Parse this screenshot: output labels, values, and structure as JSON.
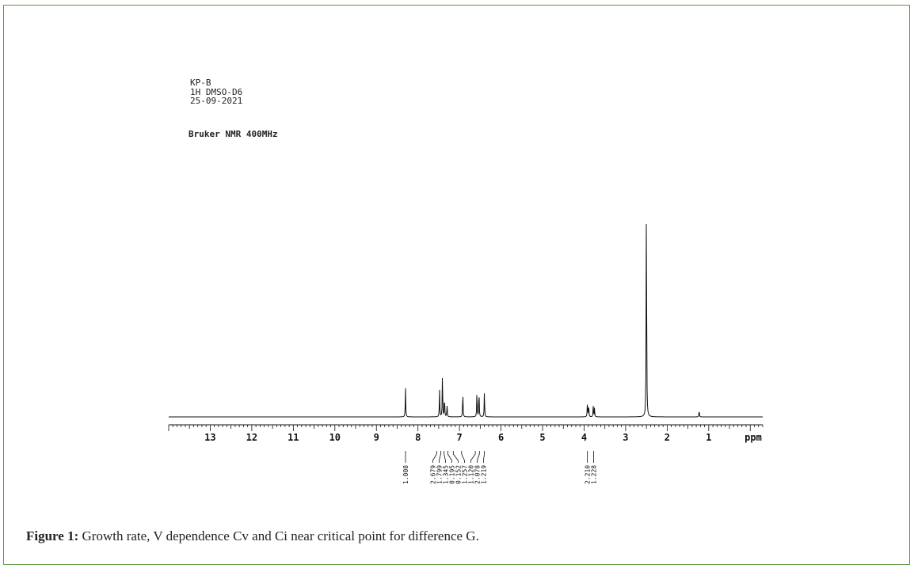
{
  "figure": {
    "caption_label": "Figure 1:",
    "caption_text": "Growth rate, V dependence Cv and Ci  near critical point for difference G.",
    "frame_color": "#5a9a3c"
  },
  "spectrum_header": {
    "sample": "KP-B",
    "experiment": "1H DMSO-D6",
    "date": "25-09-2021",
    "instrument": "Bruker NMR 400MHz"
  },
  "chart_data": {
    "type": "line",
    "xlabel": "ppm",
    "xlim": [
      14.0,
      -0.3
    ],
    "reversed_x": true,
    "x_ticks": [
      13,
      12,
      11,
      10,
      9,
      8,
      7,
      6,
      5,
      4,
      3,
      2,
      1
    ],
    "peaks": [
      {
        "shift": 8.3,
        "height": 0.125
      },
      {
        "shift": 7.48,
        "height": 0.115
      },
      {
        "shift": 7.41,
        "height": 0.19
      },
      {
        "shift": 7.36,
        "height": 0.09
      },
      {
        "shift": 7.3,
        "height": 0.05
      },
      {
        "shift": 6.92,
        "height": 0.11
      },
      {
        "shift": 6.58,
        "height": 0.115
      },
      {
        "shift": 6.53,
        "height": 0.12
      },
      {
        "shift": 6.4,
        "height": 0.11
      },
      {
        "shift": 3.92,
        "height": 0.065
      },
      {
        "shift": 3.89,
        "height": 0.055
      },
      {
        "shift": 3.78,
        "height": 0.045
      },
      {
        "shift": 3.75,
        "height": 0.04
      },
      {
        "shift": 2.5,
        "height": 1.0
      },
      {
        "shift": 1.23,
        "height": 0.03
      }
    ],
    "integrals": [
      {
        "shift": 8.3,
        "label": "1.008"
      },
      {
        "shift": 7.55,
        "label": "2.679"
      },
      {
        "shift": 7.45,
        "label": "1.799"
      },
      {
        "shift": 7.37,
        "label": "1.345"
      },
      {
        "shift": 7.28,
        "label": "0.195"
      },
      {
        "shift": 7.15,
        "label": "0.152"
      },
      {
        "shift": 6.95,
        "label": "1.257"
      },
      {
        "shift": 6.62,
        "label": "1.120"
      },
      {
        "shift": 6.52,
        "label": "2.078"
      },
      {
        "shift": 6.4,
        "label": "1.219"
      },
      {
        "shift": 3.92,
        "label": "2.210"
      },
      {
        "shift": 3.77,
        "label": "1.228"
      }
    ]
  }
}
